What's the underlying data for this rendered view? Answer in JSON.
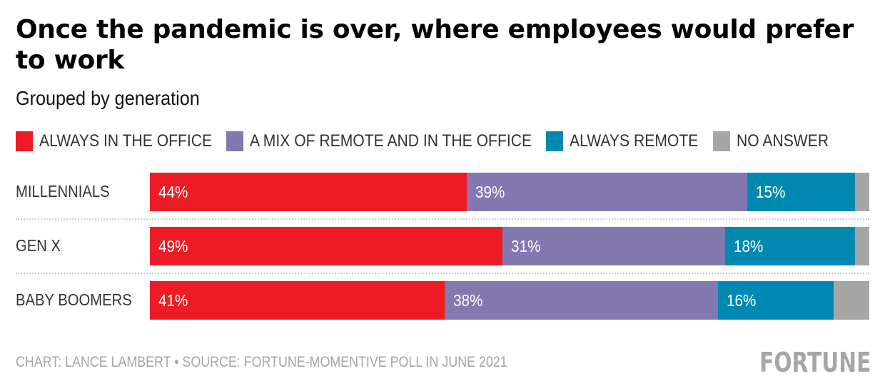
{
  "chart_data": {
    "type": "bar",
    "orientation": "horizontal",
    "stacked": true,
    "title": "Once the pandemic is over, where employees would prefer to work",
    "subtitle": "Grouped by generation",
    "categories": [
      "MILLENNIALS",
      "GEN X",
      "BABY BOOMERS"
    ],
    "series": [
      {
        "name": "ALWAYS IN THE OFFICE",
        "color": "#ed1c24",
        "values": [
          44,
          49,
          41
        ],
        "labels": [
          "44%",
          "49%",
          "41%"
        ]
      },
      {
        "name": "A MIX OF REMOTE AND IN THE OFFICE",
        "color": "#8478b0",
        "values": [
          39,
          31,
          38
        ],
        "labels": [
          "39%",
          "31%",
          "38%"
        ]
      },
      {
        "name": "ALWAYS REMOTE",
        "color": "#0089b0",
        "values": [
          15,
          18,
          16
        ],
        "labels": [
          "15%",
          "18%",
          "16%"
        ]
      },
      {
        "name": "NO ANSWER",
        "color": "#a6a6a6",
        "values": [
          2,
          2,
          5
        ],
        "labels": [
          "",
          "",
          ""
        ]
      }
    ],
    "xlim": [
      0,
      100
    ],
    "xlabel": "",
    "ylabel": "",
    "legend": "top",
    "grid": false,
    "footer": "CHART: LANCE LAMBERT • SOURCE: FORTUNE-MOMENTIVE POLL IN JUNE 2021",
    "brand": "FORTUNE"
  }
}
